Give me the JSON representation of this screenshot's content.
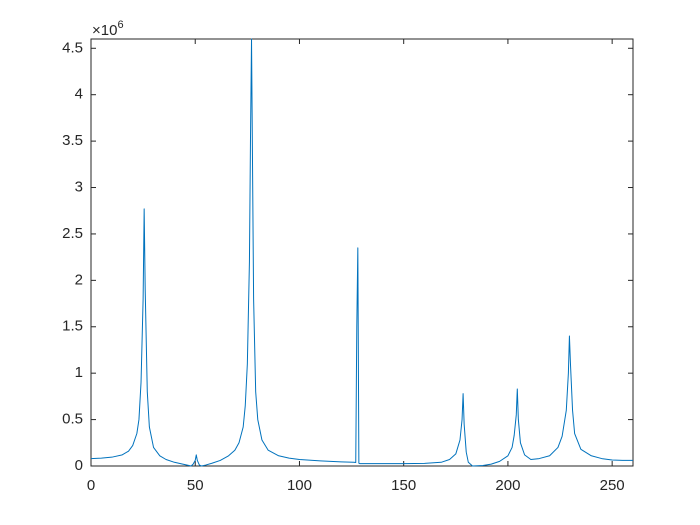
{
  "chart_data": {
    "type": "line",
    "y_multiplier_base": "×10",
    "y_multiplier_exponent": "6",
    "color": "#0072bd",
    "x": [
      0,
      5,
      10,
      15,
      18,
      20,
      22,
      23,
      24,
      25,
      25.5,
      26,
      27,
      28,
      30,
      33,
      36,
      40,
      44,
      47,
      48,
      49,
      50,
      50.5,
      51,
      52,
      53,
      55,
      58,
      62,
      66,
      69,
      71,
      73,
      74,
      75,
      76,
      76.5,
      77,
      77.5,
      78,
      79,
      80,
      82,
      85,
      90,
      95,
      100,
      110,
      120,
      126,
      127,
      127.5,
      128,
      128.5,
      129,
      140,
      150,
      160,
      168,
      172,
      175,
      177,
      178,
      178.5,
      179,
      180,
      181,
      183,
      188,
      192,
      196,
      200,
      202,
      203,
      204,
      204.5,
      205,
      206,
      208,
      211,
      215,
      220,
      224,
      226,
      228,
      229,
      229.5,
      230,
      231,
      232,
      235,
      240,
      245,
      250,
      255,
      260
    ],
    "values": [
      80000,
      85000,
      95000,
      120000,
      160000,
      220000,
      350000,
      500000,
      900000,
      1800000,
      2770000,
      1900000,
      800000,
      420000,
      200000,
      110000,
      70000,
      40000,
      20000,
      5000,
      0,
      20000,
      60000,
      120000,
      60000,
      10000,
      0,
      10000,
      30000,
      60000,
      110000,
      170000,
      250000,
      420000,
      650000,
      1100000,
      2200000,
      3500000,
      4600000,
      3200000,
      1800000,
      800000,
      500000,
      280000,
      170000,
      110000,
      85000,
      70000,
      55000,
      45000,
      40000,
      38000,
      1500000,
      2350000,
      30000,
      25000,
      25000,
      25000,
      28000,
      40000,
      70000,
      130000,
      280000,
      500000,
      780000,
      450000,
      150000,
      40000,
      0,
      5000,
      20000,
      50000,
      110000,
      200000,
      330000,
      550000,
      830000,
      500000,
      250000,
      120000,
      70000,
      80000,
      110000,
      200000,
      320000,
      600000,
      1000000,
      1400000,
      1100000,
      600000,
      350000,
      180000,
      110000,
      80000,
      65000,
      60000,
      60000
    ],
    "xlim": [
      0,
      260
    ],
    "xticks": [
      0,
      50,
      100,
      150,
      200,
      250
    ],
    "ylim": [
      0,
      4600000
    ],
    "yticks": [
      0,
      {
        "value": 500000,
        "label": "0.5"
      },
      {
        "value": 1000000,
        "label": "1"
      },
      {
        "value": 1500000,
        "label": "1.5"
      },
      {
        "value": 2000000,
        "label": "2"
      },
      {
        "value": 2500000,
        "label": "2.5"
      },
      {
        "value": 3000000,
        "label": "3"
      },
      {
        "value": 3500000,
        "label": "3.5"
      },
      {
        "value": 4000000,
        "label": "4"
      },
      {
        "value": 4500000,
        "label": "4.5"
      }
    ]
  }
}
